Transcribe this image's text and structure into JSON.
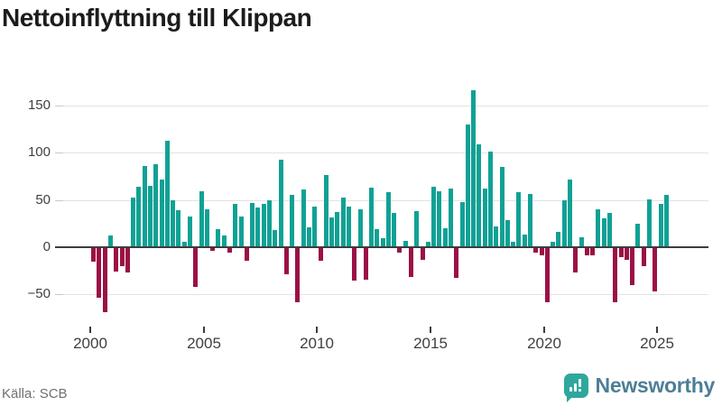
{
  "title": "Nettoinflyttning till Klippan",
  "footer": {
    "source": "Källa: SCB"
  },
  "branding": {
    "name": "Newsworthy",
    "icon": "newsworthy-chart-bubble-icon"
  },
  "colors": {
    "positive_bar": "#10A195",
    "negative_bar": "#9B1045",
    "zero_axis": "#3D3D3D",
    "gridline": "#E3E3E3",
    "tick_text": "#3F3F3F",
    "title_text": "#1C1C1C",
    "source_text": "#707070",
    "logo_text": "#4D7E96",
    "logo_icon_bg": "#2FA79D",
    "background": "#FFFFFF"
  },
  "chart_data": {
    "type": "bar",
    "title": "Nettoinflyttning till Klippan",
    "frequency": "quarterly",
    "grid": "horizontal",
    "legend": "none",
    "ylim": [
      -75,
      175
    ],
    "categories": [
      "2000Q1",
      "2000Q2",
      "2000Q3",
      "2000Q4",
      "2001Q1",
      "2001Q2",
      "2001Q3",
      "2001Q4",
      "2002Q1",
      "2002Q2",
      "2002Q3",
      "2002Q4",
      "2003Q1",
      "2003Q2",
      "2003Q3",
      "2003Q4",
      "2004Q1",
      "2004Q2",
      "2004Q3",
      "2004Q4",
      "2005Q1",
      "2005Q2",
      "2005Q3",
      "2005Q4",
      "2006Q1",
      "2006Q2",
      "2006Q3",
      "2006Q4",
      "2007Q1",
      "2007Q2",
      "2007Q3",
      "2007Q4",
      "2008Q1",
      "2008Q2",
      "2008Q3",
      "2008Q4",
      "2009Q1",
      "2009Q2",
      "2009Q3",
      "2009Q4",
      "2010Q1",
      "2010Q2",
      "2010Q3",
      "2010Q4",
      "2011Q1",
      "2011Q2",
      "2011Q3",
      "2011Q4",
      "2012Q1",
      "2012Q2",
      "2012Q3",
      "2012Q4",
      "2013Q1",
      "2013Q2",
      "2013Q3",
      "2013Q4",
      "2014Q1",
      "2014Q2",
      "2014Q3",
      "2014Q4",
      "2015Q1",
      "2015Q2",
      "2015Q3",
      "2015Q4",
      "2016Q1",
      "2016Q2",
      "2016Q3",
      "2016Q4",
      "2017Q1",
      "2017Q2",
      "2017Q3",
      "2017Q4",
      "2018Q1",
      "2018Q2",
      "2018Q3",
      "2018Q4",
      "2019Q1",
      "2019Q2",
      "2019Q3",
      "2019Q4",
      "2020Q1",
      "2020Q2",
      "2020Q3",
      "2020Q4",
      "2021Q1",
      "2021Q2",
      "2021Q3",
      "2021Q4",
      "2022Q1",
      "2022Q2",
      "2022Q3",
      "2022Q4",
      "2023Q1",
      "2023Q2",
      "2023Q3",
      "2023Q4",
      "2024Q1",
      "2024Q2",
      "2024Q3",
      "2024Q4",
      "2025Q1",
      "2025Q2"
    ],
    "series": [
      {
        "name": "Nettoinflyttning",
        "values": [
          -14,
          -53,
          -68,
          11,
          -25,
          -19,
          -26,
          52,
          63,
          85,
          64,
          87,
          71,
          112,
          49,
          38,
          5,
          32,
          -41,
          58,
          39,
          -3,
          18,
          11,
          -5,
          45,
          32,
          -13,
          46,
          41,
          45,
          49,
          17,
          92,
          -28,
          54,
          -57,
          60,
          20,
          42,
          -13,
          75,
          31,
          36,
          52,
          42,
          -34,
          39,
          -33,
          62,
          18,
          9,
          57,
          35,
          -5,
          6,
          -31,
          37,
          -12,
          5,
          63,
          58,
          19,
          61,
          -32,
          47,
          129,
          165,
          108,
          61,
          100,
          21,
          84,
          28,
          5,
          57,
          12,
          55,
          -5,
          -8,
          -57,
          5,
          15,
          49,
          71,
          -26,
          10,
          -8,
          -8,
          39,
          30,
          35,
          -57,
          -10,
          -12,
          -39,
          24,
          -19,
          50,
          -46,
          45,
          54
        ]
      }
    ],
    "x_axis": {
      "tick_labels": [
        "2000",
        "2005",
        "2010",
        "2015",
        "2020",
        "2025"
      ]
    },
    "y_axis": {
      "ticks": [
        150,
        100,
        50,
        0,
        -50
      ],
      "tick_labels": [
        "150",
        "100",
        "50",
        "0",
        "−50"
      ]
    }
  }
}
